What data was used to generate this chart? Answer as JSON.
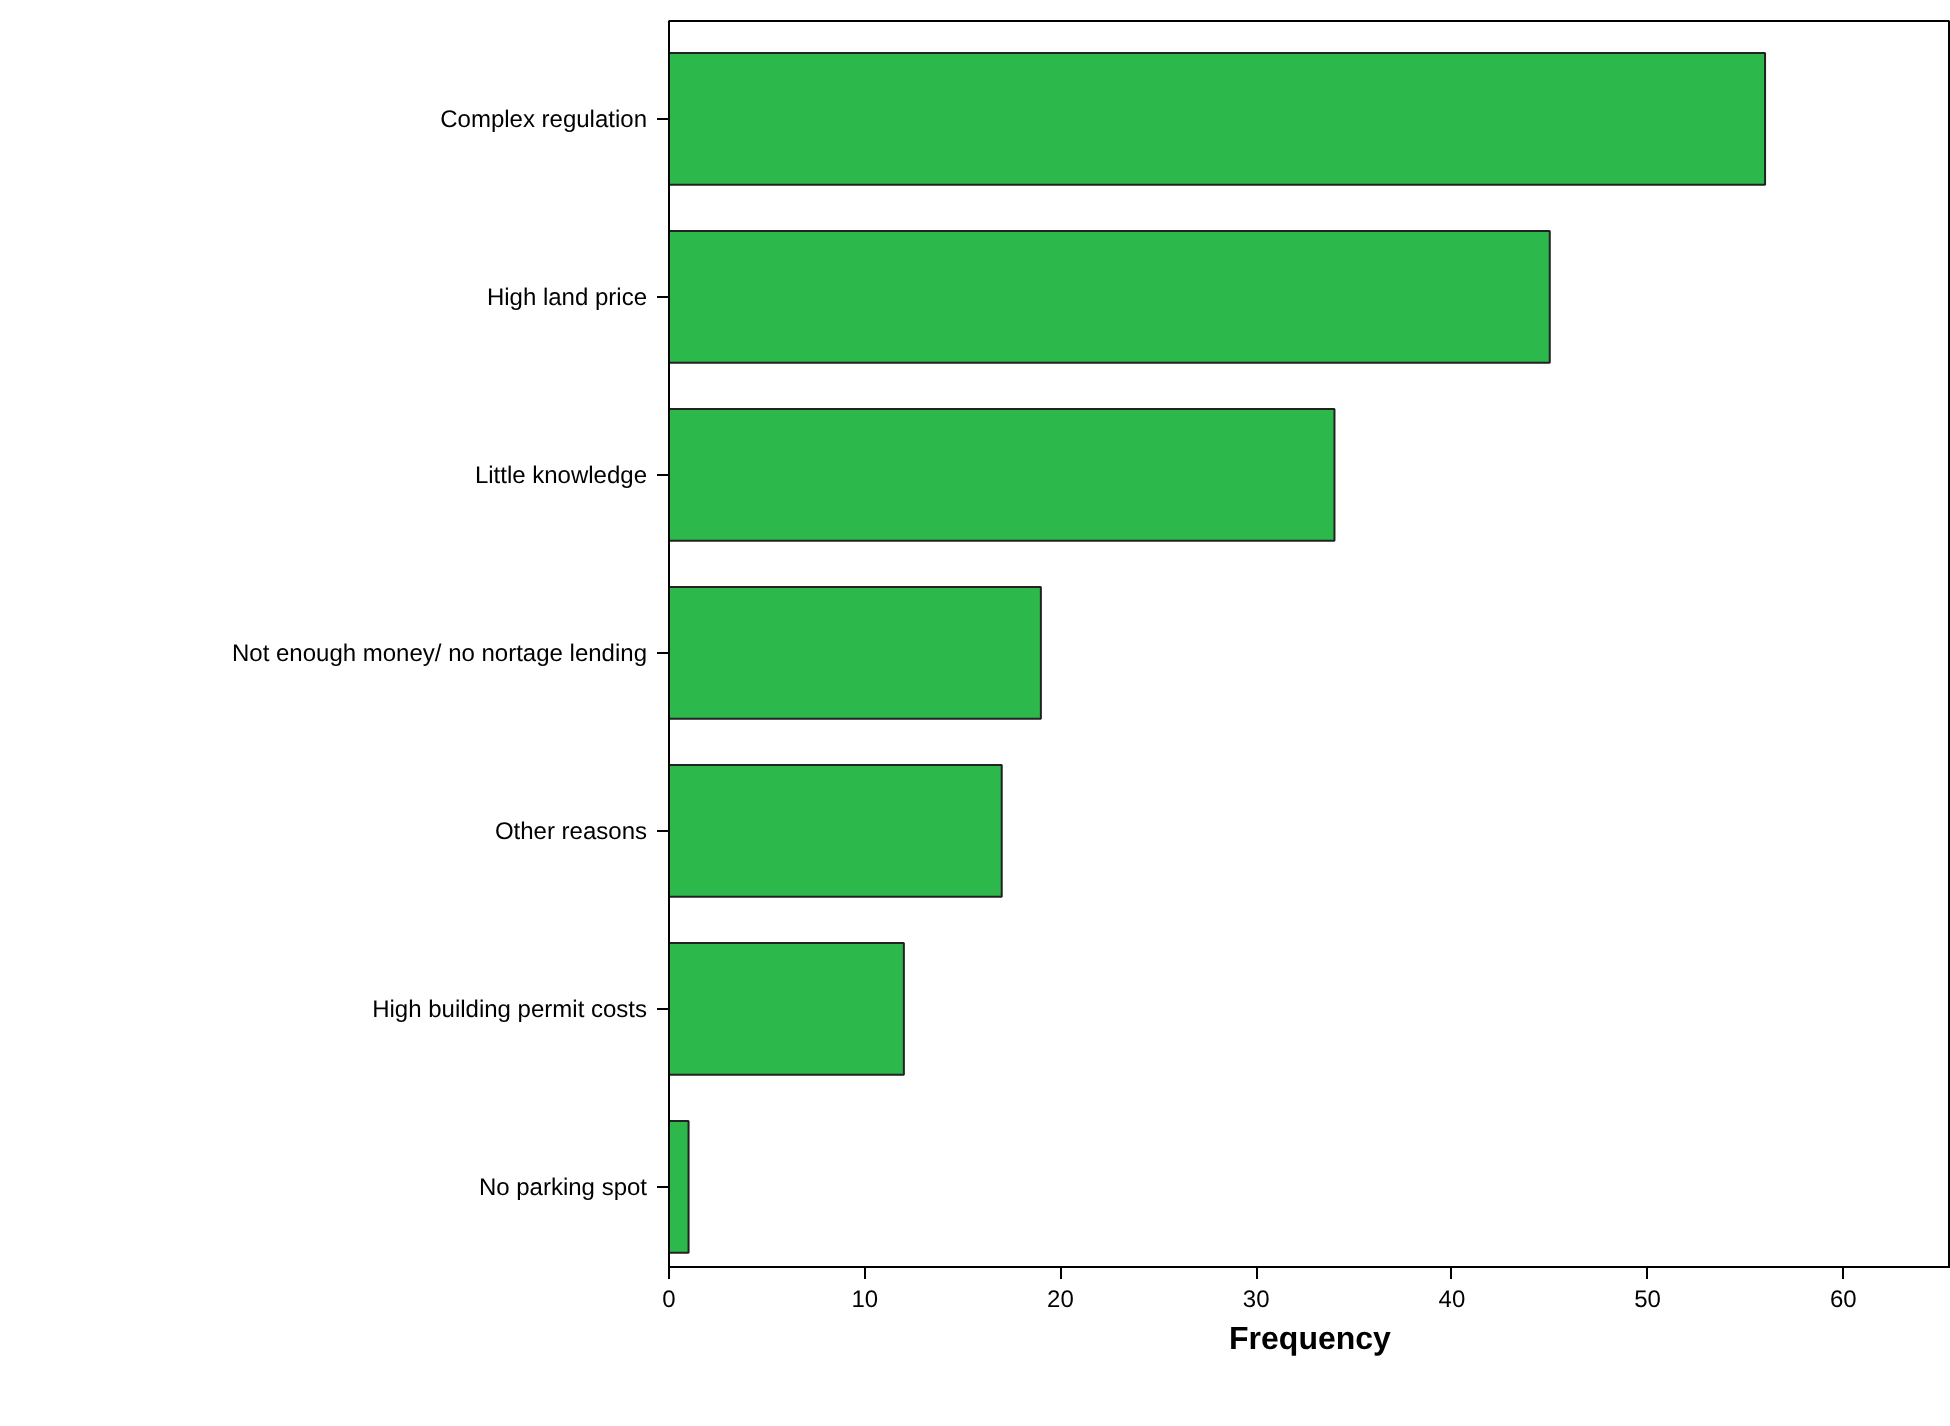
{
  "chart_data": {
    "type": "bar",
    "orientation": "horizontal",
    "xlabel": "Frequency",
    "categories": [
      "Complex regulation",
      "High land price",
      "Little knowledge",
      "Not enough money/ no nortage lending",
      "Other reasons",
      "High building permit costs",
      "No parking spot"
    ],
    "values": [
      56,
      45,
      34,
      19,
      17,
      12,
      1
    ],
    "color": "#2db84b",
    "xlim": [
      0,
      65.5
    ],
    "xticks": [
      0,
      10,
      20,
      30,
      40,
      50,
      60
    ],
    "grid": false
  }
}
